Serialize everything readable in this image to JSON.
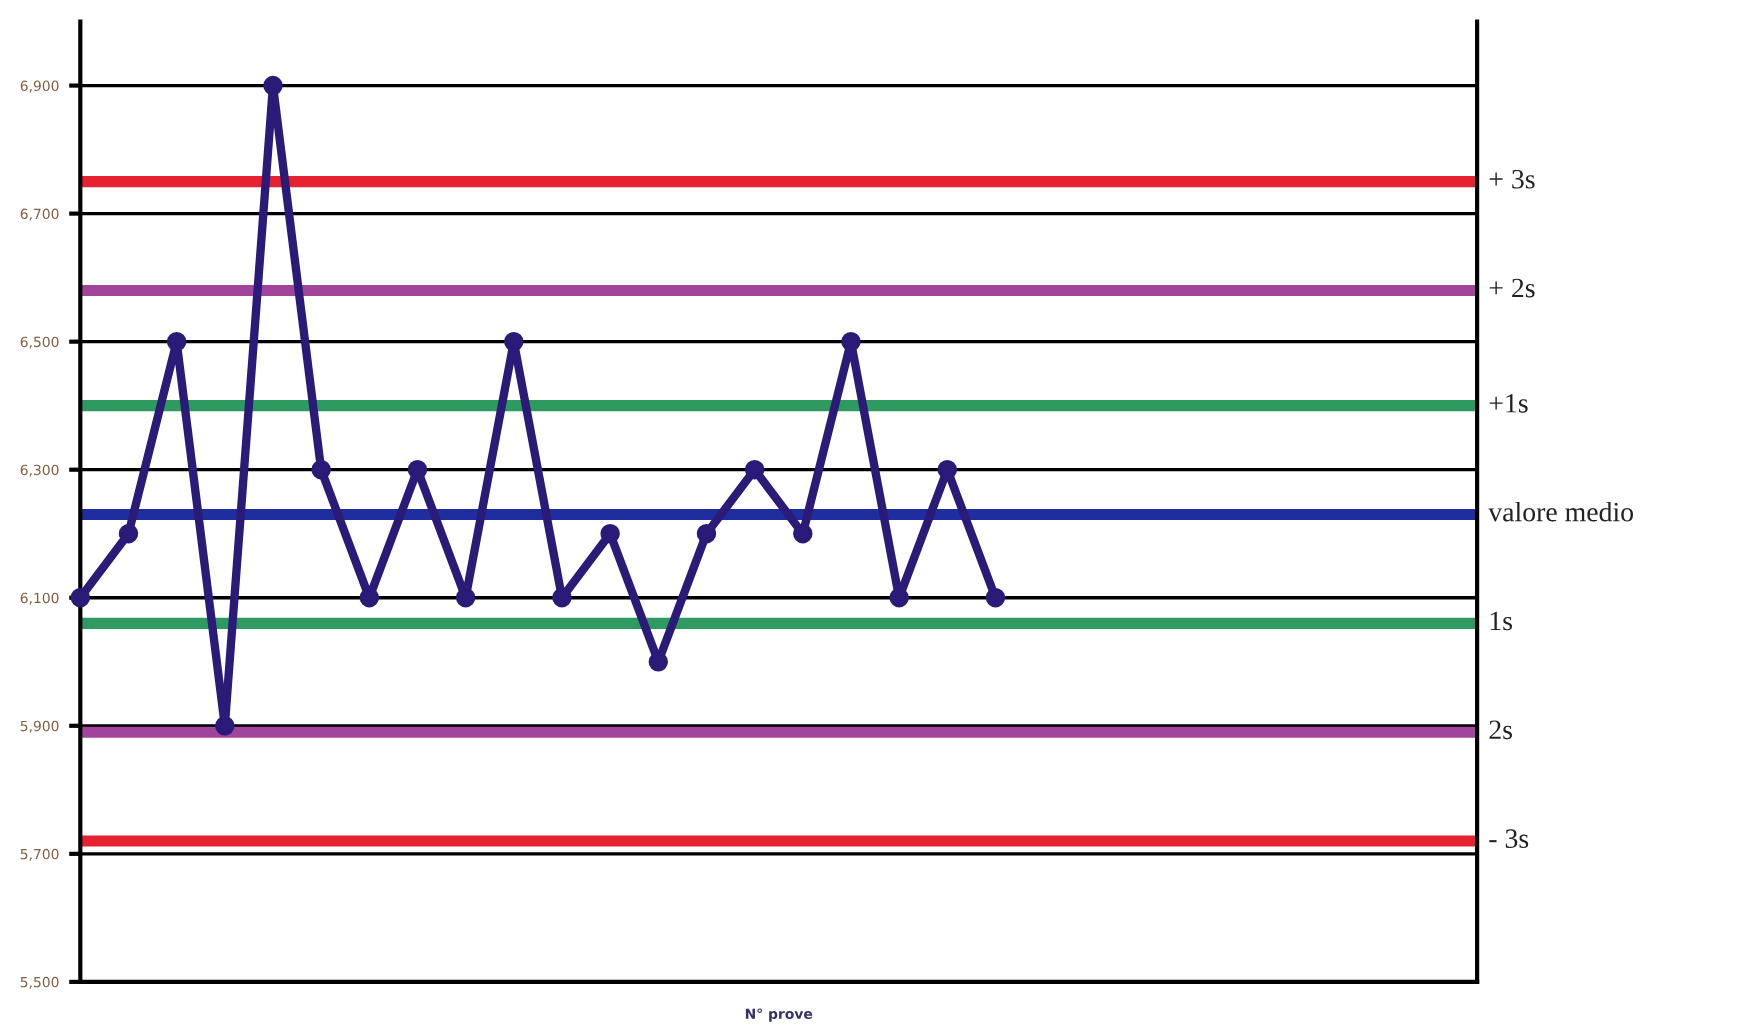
{
  "chart_data": {
    "type": "line",
    "xlabel": "N° prove",
    "categories": [
      null,
      null,
      null,
      null,
      null,
      null,
      null,
      null,
      null,
      null,
      null,
      null,
      null,
      null,
      null,
      null,
      null,
      null,
      null,
      null,
      null,
      null,
      null,
      null,
      null,
      null,
      null,
      null,
      null,
      null
    ],
    "series": [
      {
        "color": "#2b1a78",
        "values": [
          6100,
          6200,
          6500,
          5900,
          6900,
          6300,
          6100,
          6300,
          6100,
          6500,
          6100,
          6200,
          6000,
          6200,
          6300,
          6200,
          6500,
          6100,
          6300,
          6100,
          null,
          null,
          null,
          null,
          null,
          null,
          null,
          null,
          null,
          null
        ]
      }
    ],
    "marker": "circle",
    "line_style": "solid",
    "ylim": [
      5500,
      7000
    ],
    "yticks": [
      {
        "value": 5500,
        "label": "5,500"
      },
      {
        "value": 5700,
        "label": "5,700"
      },
      {
        "value": 5900,
        "label": "5,900"
      },
      {
        "value": 6100,
        "label": "6,100"
      },
      {
        "value": 6300,
        "label": "6,300"
      },
      {
        "value": 6500,
        "label": "6,500"
      },
      {
        "value": 6700,
        "label": "6,700"
      },
      {
        "value": 6900,
        "label": "6,900"
      }
    ],
    "grid": "y",
    "legend": false,
    "ref_lines": [
      {
        "axis": "y",
        "value": 6750,
        "label": "+ 3s",
        "color": "#e62230"
      },
      {
        "axis": "y",
        "value": 6580,
        "label": "+ 2s",
        "color": "#a0449c"
      },
      {
        "axis": "y",
        "value": 6400,
        "label": "+1s",
        "color": "#2e9a60"
      },
      {
        "axis": "y",
        "value": 6230,
        "label": "valore medio",
        "color": "#1f2e9e"
      },
      {
        "axis": "y",
        "value": 6060,
        "label": "1s",
        "color": "#2e9a60"
      },
      {
        "axis": "y",
        "value": 5890,
        "label": "2s",
        "color": "#a0449c"
      },
      {
        "axis": "y",
        "value": 5720,
        "label": "- 3s",
        "color": "#e62230"
      }
    ]
  }
}
